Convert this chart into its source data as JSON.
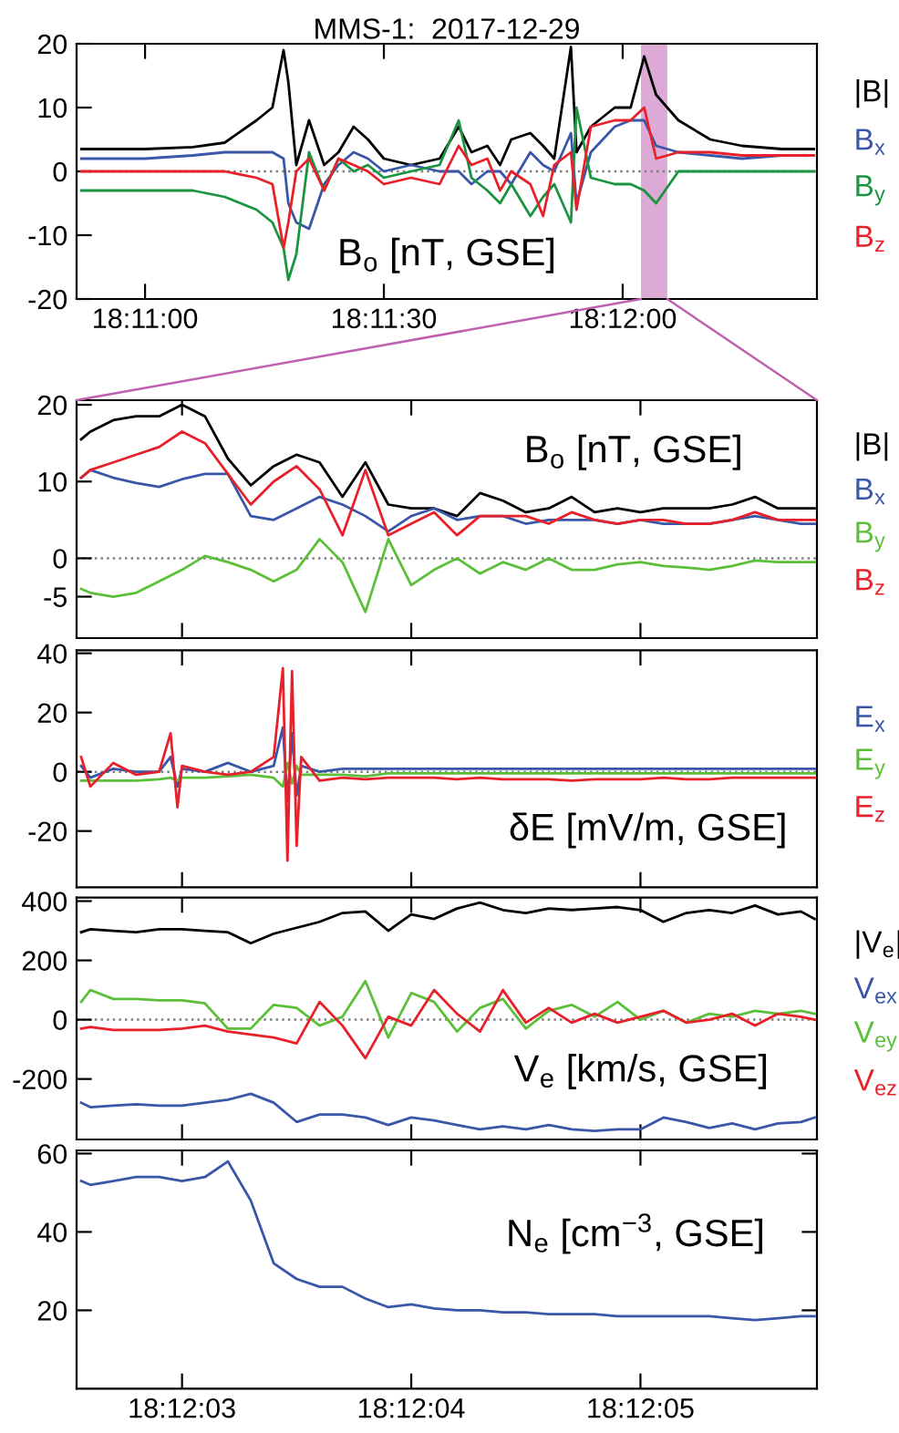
{
  "chart_data": [
    {
      "type": "line",
      "title": "MMS-1:  2017-12-29",
      "annotations": [
        "B$_{o}$ [nT, GSE]"
      ],
      "legend": "right",
      "xlim": [
        "2017-12-29T18:10:51.4",
        "2017-12-29T18:12:24.4"
      ],
      "ylim": [
        -20,
        20
      ],
      "yticks": [
        -20,
        -10,
        0,
        10,
        20
      ],
      "xticks": [
        {
          "value": "2017-12-29T18:11:00",
          "label": "18:11:00"
        },
        {
          "value": "2017-12-29T18:11:30",
          "label": "18:11:30"
        },
        {
          "value": "2017-12-29T18:12:00",
          "label": "18:12:00"
        }
      ],
      "ref_lines": [
        {
          "axis": "y",
          "value": 0,
          "color": "#808080",
          "line_style": "dotted"
        }
      ],
      "bands": [
        {
          "axis": "x",
          "from": "2017-12-29T18:12:02.3",
          "to": "2017-12-29T18:12:05.6",
          "color": "#dcaad4"
        }
      ],
      "x": [
        "2017-12-29T18:10:52",
        "2017-12-29T18:11:00",
        "2017-12-29T18:11:06",
        "2017-12-29T18:11:10",
        "2017-12-29T18:11:14",
        "2017-12-29T18:11:16",
        "2017-12-29T18:11:17.4",
        "2017-12-29T18:11:18",
        "2017-12-29T18:11:19",
        "2017-12-29T18:11:20.6",
        "2017-12-29T18:11:22.5",
        "2017-12-29T18:11:24.3",
        "2017-12-29T18:11:26.2",
        "2017-12-29T18:11:28",
        "2017-12-29T18:11:30",
        "2017-12-29T18:11:33.4",
        "2017-12-29T18:11:37",
        "2017-12-29T18:11:39.4",
        "2017-12-29T18:11:41",
        "2017-12-29T18:11:43",
        "2017-12-29T18:11:44.6",
        "2017-12-29T18:11:46",
        "2017-12-29T18:11:48.4",
        "2017-12-29T18:11:50",
        "2017-12-29T18:11:51.4",
        "2017-12-29T18:11:53.5",
        "2017-12-29T18:11:54.2",
        "2017-12-29T18:11:56",
        "2017-12-29T18:11:59",
        "2017-12-29T18:12:01",
        "2017-12-29T18:12:02.7",
        "2017-12-29T18:12:04.2",
        "2017-12-29T18:12:07",
        "2017-12-29T18:12:11",
        "2017-12-29T18:12:15",
        "2017-12-29T18:12:20",
        "2017-12-29T18:12:24"
      ],
      "series": [
        {
          "name": "|B|",
          "color": "#000000",
          "values": [
            3.5,
            3.5,
            3.8,
            4.5,
            8,
            10,
            19,
            14,
            1,
            8,
            1,
            3,
            7,
            5,
            2,
            1,
            2,
            7,
            3,
            4,
            1,
            5,
            6,
            4,
            2,
            19.5,
            3,
            7,
            10,
            10,
            18,
            12,
            8,
            5,
            4,
            3.5,
            3.5
          ]
        },
        {
          "name": "B$_{x}$",
          "color": "#3a56a8",
          "values": [
            2,
            2,
            2.5,
            3,
            3,
            3,
            2,
            -5,
            -8,
            -9,
            -2,
            1,
            3,
            2,
            0,
            1,
            0,
            0,
            -2,
            0,
            0,
            -2,
            3,
            1,
            0,
            6,
            -5,
            3,
            7,
            8,
            8,
            4,
            3,
            2.5,
            2,
            2.5,
            2.5
          ]
        },
        {
          "name": "B$_{y}$",
          "color": "#1a9440",
          "values": [
            -3,
            -3,
            -3,
            -4,
            -6,
            -8,
            -12,
            -17,
            -13,
            3,
            -3,
            2,
            0,
            1,
            -1,
            0,
            1,
            8,
            -1,
            -3,
            -5,
            -2,
            -7,
            -4,
            -2,
            -8,
            10,
            -1,
            -2,
            -2,
            -3,
            -5,
            0,
            0,
            0,
            0,
            0
          ]
        },
        {
          "name": "B$_{z}$",
          "color": "#e8202a",
          "values": [
            0,
            0,
            0,
            0,
            -1,
            -2,
            -12,
            -8,
            0,
            2,
            -3,
            2,
            1,
            0,
            -2,
            -1,
            -2,
            4,
            1,
            2,
            -3,
            0,
            -2,
            -7,
            1,
            3,
            -6,
            7,
            8,
            8,
            10,
            2,
            3,
            3,
            2.5,
            2.5,
            2.5
          ]
        }
      ]
    },
    {
      "type": "line",
      "annotations": [
        "B$_{o}$ [nT, GSE]"
      ],
      "legend": "right",
      "tick_labels": "y",
      "xlim": [
        "2017-12-29T18:12:02.54",
        "2017-12-29T18:12:05.77"
      ],
      "ylim": [
        -10.4,
        20.6
      ],
      "yticks": [
        -5,
        0,
        10,
        20
      ],
      "xticks": [
        {
          "value": "2017-12-29T18:12:03",
          "label": null
        },
        {
          "value": "2017-12-29T18:12:04",
          "label": null
        },
        {
          "value": "2017-12-29T18:12:05",
          "label": null
        }
      ],
      "ref_lines": [
        {
          "axis": "y",
          "value": 0,
          "color": "#808080",
          "line_style": "dotted"
        }
      ],
      "x": [
        "2017-12-29T18:12:02.56",
        "2017-12-29T18:12:02.6",
        "2017-12-29T18:12:02.7",
        "2017-12-29T18:12:02.8",
        "2017-12-29T18:12:02.9",
        "2017-12-29T18:12:03.0",
        "2017-12-29T18:12:03.1",
        "2017-12-29T18:12:03.2",
        "2017-12-29T18:12:03.3",
        "2017-12-29T18:12:03.4",
        "2017-12-29T18:12:03.5",
        "2017-12-29T18:12:03.6",
        "2017-12-29T18:12:03.7",
        "2017-12-29T18:12:03.8",
        "2017-12-29T18:12:03.9",
        "2017-12-29T18:12:04.0",
        "2017-12-29T18:12:04.1",
        "2017-12-29T18:12:04.2",
        "2017-12-29T18:12:04.3",
        "2017-12-29T18:12:04.4",
        "2017-12-29T18:12:04.5",
        "2017-12-29T18:12:04.6",
        "2017-12-29T18:12:04.7",
        "2017-12-29T18:12:04.8",
        "2017-12-29T18:12:04.9",
        "2017-12-29T18:12:05.0",
        "2017-12-29T18:12:05.1",
        "2017-12-29T18:12:05.2",
        "2017-12-29T18:12:05.3",
        "2017-12-29T18:12:05.4",
        "2017-12-29T18:12:05.5",
        "2017-12-29T18:12:05.6",
        "2017-12-29T18:12:05.7",
        "2017-12-29T18:12:05.76"
      ],
      "series": [
        {
          "name": "|B|",
          "color": "#000000",
          "values": [
            15.5,
            16.5,
            18,
            18.5,
            18.5,
            20,
            18.5,
            13,
            9.5,
            12,
            13.5,
            12.5,
            8,
            12.5,
            7,
            6.5,
            6.5,
            5.5,
            8.5,
            7.5,
            6,
            6.5,
            8,
            6,
            6.5,
            6,
            6.5,
            6.5,
            6.5,
            7,
            8,
            6.5,
            6.5,
            6.5
          ]
        },
        {
          "name": "B$_{x}$",
          "color": "#3a56a8",
          "values": [
            10.5,
            11.5,
            10.5,
            9.8,
            9.3,
            10.3,
            11,
            11,
            5.5,
            5,
            6.5,
            8,
            7,
            5.5,
            3.5,
            5.5,
            6.5,
            5,
            5.5,
            5.5,
            4.5,
            5,
            5,
            5,
            4.5,
            5,
            4.5,
            4.5,
            4.5,
            5,
            5.5,
            5,
            4.5,
            4.5
          ]
        },
        {
          "name": "B$_{y}$",
          "color": "#5cbf3a",
          "values": [
            -4,
            -4.5,
            -5,
            -4.5,
            -3,
            -1.5,
            0.3,
            -0.5,
            -1.5,
            -3,
            -1.5,
            2.5,
            -0.5,
            -7,
            2.5,
            -3.5,
            -1.5,
            0,
            -2,
            -0.5,
            -1.5,
            0,
            -1.5,
            -1.5,
            -0.8,
            -0.5,
            -1,
            -1.2,
            -1.5,
            -1,
            -0.3,
            -0.5,
            -0.5,
            -0.5
          ]
        },
        {
          "name": "B$_{z}$",
          "color": "#e8202a",
          "values": [
            10.5,
            11.5,
            12.5,
            13.5,
            14.5,
            16.5,
            15,
            11,
            7,
            10,
            12,
            9,
            3,
            11.5,
            3,
            4.5,
            6,
            3,
            5.5,
            5.5,
            5.5,
            4.5,
            6,
            5,
            4.5,
            5,
            5,
            4.5,
            4.5,
            5,
            6,
            5,
            5,
            5
          ]
        }
      ]
    },
    {
      "type": "line",
      "annotations": [
        "δE [mV/m, GSE]"
      ],
      "legend": "right",
      "tick_labels": "y",
      "xlim": [
        "2017-12-29T18:12:02.54",
        "2017-12-29T18:12:05.77"
      ],
      "ylim": [
        -39,
        41
      ],
      "yticks": [
        -20,
        0,
        20,
        40
      ],
      "xticks": [
        {
          "value": "2017-12-29T18:12:03",
          "label": null
        },
        {
          "value": "2017-12-29T18:12:04",
          "label": null
        },
        {
          "value": "2017-12-29T18:12:05",
          "label": null
        }
      ],
      "ref_lines": [
        {
          "axis": "y",
          "value": 0,
          "color": "#808080",
          "line_style": "dotted"
        }
      ],
      "x": [
        "2017-12-29T18:12:02.56",
        "2017-12-29T18:12:02.6",
        "2017-12-29T18:12:02.7",
        "2017-12-29T18:12:02.8",
        "2017-12-29T18:12:02.9",
        "2017-12-29T18:12:02.95",
        "2017-12-29T18:12:02.98",
        "2017-12-29T18:12:03.0",
        "2017-12-29T18:12:03.1",
        "2017-12-29T18:12:03.2",
        "2017-12-29T18:12:03.3",
        "2017-12-29T18:12:03.4",
        "2017-12-29T18:12:03.44",
        "2017-12-29T18:12:03.46",
        "2017-12-29T18:12:03.48",
        "2017-12-29T18:12:03.5",
        "2017-12-29T18:12:03.52",
        "2017-12-29T18:12:03.6",
        "2017-12-29T18:12:03.7",
        "2017-12-29T18:12:03.8",
        "2017-12-29T18:12:03.9",
        "2017-12-29T18:12:04.0",
        "2017-12-29T18:12:04.1",
        "2017-12-29T18:12:04.2",
        "2017-12-29T18:12:04.3",
        "2017-12-29T18:12:04.4",
        "2017-12-29T18:12:04.5",
        "2017-12-29T18:12:04.6",
        "2017-12-29T18:12:04.7",
        "2017-12-29T18:12:04.8",
        "2017-12-29T18:12:04.9",
        "2017-12-29T18:12:05.0",
        "2017-12-29T18:12:05.1",
        "2017-12-29T18:12:05.2",
        "2017-12-29T18:12:05.3",
        "2017-12-29T18:12:05.4",
        "2017-12-29T18:12:05.5",
        "2017-12-29T18:12:05.6",
        "2017-12-29T18:12:05.7",
        "2017-12-29T18:12:05.76"
      ],
      "series": [
        {
          "name": "E$_{x}$",
          "color": "#3a56a8",
          "values": [
            2,
            -2,
            1,
            0,
            0,
            5,
            -5,
            1,
            0,
            3,
            0,
            2,
            15,
            -10,
            13,
            -8,
            2,
            0,
            1,
            1,
            1,
            1,
            1,
            1,
            1,
            1,
            1,
            1,
            1,
            1,
            1,
            1,
            1,
            1,
            1,
            1,
            1,
            1,
            1,
            1
          ]
        },
        {
          "name": "E$_{y}$",
          "color": "#5cbf3a",
          "values": [
            -3,
            -3,
            -3,
            -3,
            -2.5,
            -2,
            -3,
            -2,
            -2,
            -1.5,
            -1,
            -2,
            -5,
            3,
            -4,
            2,
            -1,
            -1,
            -1,
            -1.5,
            -0.5,
            -0.5,
            -0.5,
            -0.5,
            -0.5,
            -0.5,
            -0.5,
            -0.5,
            -0.5,
            -0.5,
            -0.5,
            -0.5,
            -0.5,
            -0.5,
            -0.5,
            -0.5,
            -0.5,
            -0.5,
            -0.5,
            -0.5
          ]
        },
        {
          "name": "E$_{z}$",
          "color": "#e8202a",
          "values": [
            5,
            -5,
            3,
            -1,
            0,
            13,
            -12,
            2,
            0,
            -1,
            0,
            5,
            35,
            -30,
            34,
            -25,
            5,
            -3,
            -2,
            -2.5,
            -2,
            -2,
            -2,
            -2.5,
            -2,
            -2.5,
            -2.5,
            -2.5,
            -3,
            -2.5,
            -2.5,
            -2.5,
            -2,
            -2.5,
            -2.5,
            -2,
            -2,
            -2,
            -2,
            -2
          ]
        }
      ]
    },
    {
      "type": "line",
      "annotations": [
        "V$_{e}$ [km/s, GSE]"
      ],
      "legend": "right",
      "tick_labels": "y",
      "xlim": [
        "2017-12-29T18:12:02.54",
        "2017-12-29T18:12:05.77"
      ],
      "ylim": [
        -404,
        412
      ],
      "yticks": [
        -200,
        0,
        200,
        400
      ],
      "xticks": [
        {
          "value": "2017-12-29T18:12:03",
          "label": null
        },
        {
          "value": "2017-12-29T18:12:04",
          "label": null
        },
        {
          "value": "2017-12-29T18:12:05",
          "label": null
        }
      ],
      "ref_lines": [
        {
          "axis": "y",
          "value": 0,
          "color": "#808080",
          "line_style": "dotted"
        }
      ],
      "x": [
        "2017-12-29T18:12:02.56",
        "2017-12-29T18:12:02.6",
        "2017-12-29T18:12:02.7",
        "2017-12-29T18:12:02.8",
        "2017-12-29T18:12:02.9",
        "2017-12-29T18:12:03.0",
        "2017-12-29T18:12:03.1",
        "2017-12-29T18:12:03.2",
        "2017-12-29T18:12:03.3",
        "2017-12-29T18:12:03.4",
        "2017-12-29T18:12:03.5",
        "2017-12-29T18:12:03.6",
        "2017-12-29T18:12:03.7",
        "2017-12-29T18:12:03.8",
        "2017-12-29T18:12:03.9",
        "2017-12-29T18:12:04.0",
        "2017-12-29T18:12:04.1",
        "2017-12-29T18:12:04.2",
        "2017-12-29T18:12:04.3",
        "2017-12-29T18:12:04.4",
        "2017-12-29T18:12:04.5",
        "2017-12-29T18:12:04.6",
        "2017-12-29T18:12:04.7",
        "2017-12-29T18:12:04.8",
        "2017-12-29T18:12:04.9",
        "2017-12-29T18:12:05.0",
        "2017-12-29T18:12:05.1",
        "2017-12-29T18:12:05.2",
        "2017-12-29T18:12:05.3",
        "2017-12-29T18:12:05.4",
        "2017-12-29T18:12:05.5",
        "2017-12-29T18:12:05.6",
        "2017-12-29T18:12:05.7",
        "2017-12-29T18:12:05.76"
      ],
      "series": [
        {
          "name": "|V$_{e}$|",
          "color": "#000000",
          "values": [
            295,
            305,
            300,
            295,
            305,
            305,
            300,
            295,
            258,
            290,
            310,
            330,
            360,
            365,
            300,
            355,
            340,
            375,
            395,
            370,
            360,
            375,
            370,
            375,
            380,
            370,
            330,
            360,
            370,
            360,
            385,
            355,
            365,
            340
          ]
        },
        {
          "name": "V$_{ex}$",
          "color": "#3a56a8",
          "values": [
            -280,
            -295,
            -290,
            -285,
            -290,
            -290,
            -280,
            -270,
            -250,
            -280,
            -345,
            -320,
            -320,
            -330,
            -355,
            -330,
            -340,
            -355,
            -370,
            -360,
            -370,
            -355,
            -370,
            -375,
            -370,
            -370,
            -330,
            -345,
            -365,
            -350,
            -370,
            -350,
            -345,
            -330
          ]
        },
        {
          "name": "V$_{ey}$",
          "color": "#5cbf3a",
          "values": [
            60,
            100,
            70,
            70,
            65,
            65,
            55,
            -30,
            -30,
            50,
            40,
            -20,
            10,
            130,
            -60,
            90,
            60,
            -40,
            40,
            70,
            -30,
            30,
            50,
            10,
            60,
            0,
            30,
            -10,
            20,
            10,
            30,
            20,
            30,
            20
          ]
        },
        {
          "name": "V$_{ez}$",
          "color": "#e8202a",
          "values": [
            -30,
            -25,
            -35,
            -35,
            -35,
            -30,
            -20,
            -40,
            -50,
            -60,
            -80,
            60,
            -20,
            -130,
            10,
            -20,
            100,
            20,
            -40,
            100,
            -10,
            40,
            -10,
            20,
            -10,
            10,
            30,
            -10,
            0,
            20,
            -20,
            20,
            10,
            0
          ]
        }
      ]
    },
    {
      "type": "line",
      "annotations": [
        "N$_{e}$ [cm$^{−3}$, GSE]"
      ],
      "xlim": [
        "2017-12-29T18:12:02.54",
        "2017-12-29T18:12:05.77"
      ],
      "ylim": [
        0,
        60.8
      ],
      "yticks": [
        20,
        40,
        60
      ],
      "xticks": [
        {
          "value": "2017-12-29T18:12:03",
          "label": "18:12:03"
        },
        {
          "value": "2017-12-29T18:12:04",
          "label": "18:12:04"
        },
        {
          "value": "2017-12-29T18:12:05",
          "label": "18:12:05"
        }
      ],
      "x": [
        "2017-12-29T18:12:02.56",
        "2017-12-29T18:12:02.6",
        "2017-12-29T18:12:02.7",
        "2017-12-29T18:12:02.8",
        "2017-12-29T18:12:02.9",
        "2017-12-29T18:12:03.0",
        "2017-12-29T18:12:03.1",
        "2017-12-29T18:12:03.2",
        "2017-12-29T18:12:03.3",
        "2017-12-29T18:12:03.4",
        "2017-12-29T18:12:03.5",
        "2017-12-29T18:12:03.6",
        "2017-12-29T18:12:03.7",
        "2017-12-29T18:12:03.8",
        "2017-12-29T18:12:03.9",
        "2017-12-29T18:12:04.0",
        "2017-12-29T18:12:04.1",
        "2017-12-29T18:12:04.2",
        "2017-12-29T18:12:04.3",
        "2017-12-29T18:12:04.4",
        "2017-12-29T18:12:04.5",
        "2017-12-29T18:12:04.6",
        "2017-12-29T18:12:04.7",
        "2017-12-29T18:12:04.8",
        "2017-12-29T18:12:04.9",
        "2017-12-29T18:12:05.0",
        "2017-12-29T18:12:05.1",
        "2017-12-29T18:12:05.2",
        "2017-12-29T18:12:05.3",
        "2017-12-29T18:12:05.4",
        "2017-12-29T18:12:05.5",
        "2017-12-29T18:12:05.6",
        "2017-12-29T18:12:05.7",
        "2017-12-29T18:12:05.76"
      ],
      "series": [
        {
          "color": "#3a56a8",
          "values": [
            53,
            52,
            53,
            54,
            54,
            53,
            54,
            58,
            48,
            32,
            28,
            26,
            26,
            23,
            20.8,
            21.5,
            20.5,
            20,
            20,
            19.5,
            19.5,
            19,
            19,
            19,
            18.5,
            18.5,
            18.5,
            18.5,
            18.5,
            18,
            17.5,
            18,
            18.5,
            18.5
          ]
        }
      ]
    }
  ]
}
